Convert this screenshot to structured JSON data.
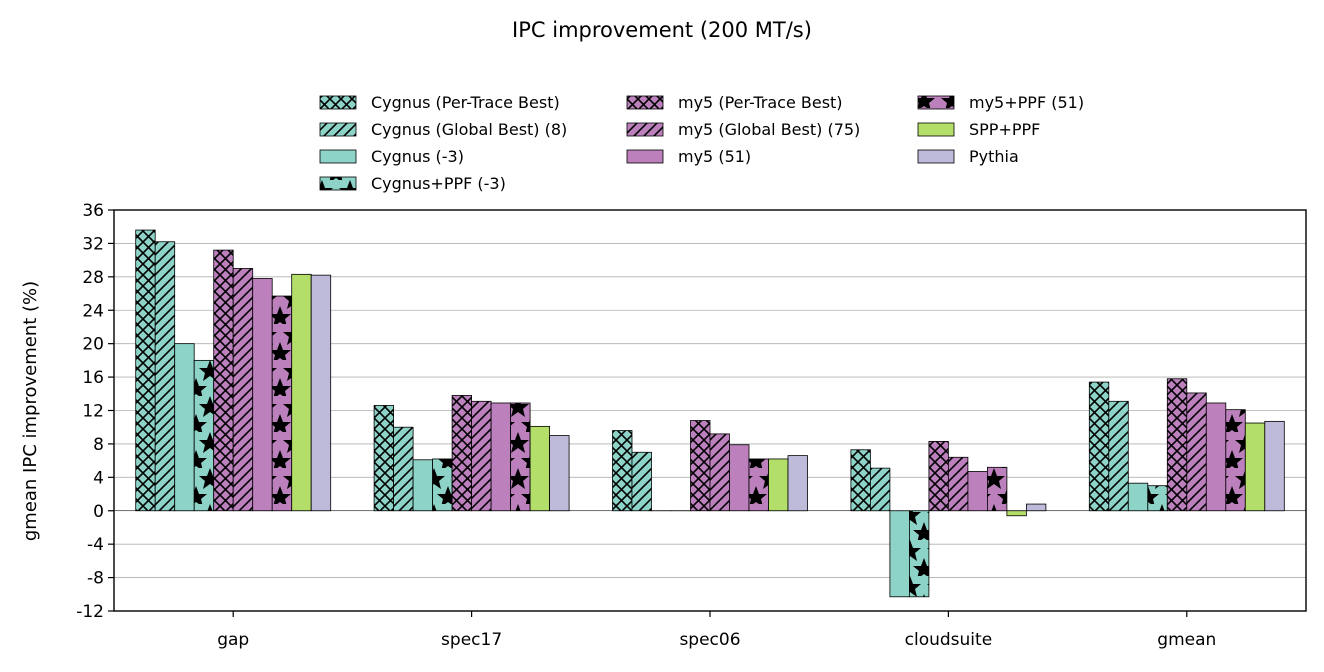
{
  "chart_data": {
    "type": "bar",
    "title": "IPC improvement (200 MT/s)",
    "xlabel": "",
    "ylabel": "gmean IPC improvement (%)",
    "ylim": [
      -12,
      36
    ],
    "yticks": [
      -12,
      -8,
      -4,
      0,
      4,
      8,
      12,
      16,
      20,
      24,
      28,
      32,
      36
    ],
    "grid": "horizontal",
    "legend_position": "top",
    "categories": [
      "gap",
      "spec17",
      "spec06",
      "cloudsuite",
      "gmean"
    ],
    "series": [
      {
        "name": "Cygnus (Per-Trace Best)",
        "color": "#8dd3c7",
        "pattern": "crosshatch",
        "values": [
          33.6,
          12.6,
          9.6,
          7.3,
          15.4
        ]
      },
      {
        "name": "Cygnus (Global Best) (8)",
        "color": "#8dd3c7",
        "pattern": "diagonal",
        "values": [
          32.2,
          10.0,
          7.0,
          5.1,
          13.1
        ]
      },
      {
        "name": "Cygnus (-3)",
        "color": "#8dd3c7",
        "pattern": "none",
        "values": [
          20.0,
          6.1,
          0.0,
          -10.3,
          3.3
        ]
      },
      {
        "name": "Cygnus+PPF (-3)",
        "color": "#8dd3c7",
        "pattern": "star",
        "values": [
          18.0,
          6.2,
          0.0,
          -10.3,
          3.0
        ]
      },
      {
        "name": "my5 (Per-Trace Best)",
        "color": "#bc80bd",
        "pattern": "crosshatch",
        "values": [
          31.2,
          13.8,
          10.8,
          8.3,
          15.8
        ]
      },
      {
        "name": "my5 (Global Best) (75)",
        "color": "#bc80bd",
        "pattern": "diagonal",
        "values": [
          29.0,
          13.1,
          9.2,
          6.4,
          14.1
        ]
      },
      {
        "name": "my5 (51)",
        "color": "#bc80bd",
        "pattern": "none",
        "values": [
          27.8,
          12.9,
          7.9,
          4.7,
          12.9
        ]
      },
      {
        "name": "my5+PPF (51)",
        "color": "#bc80bd",
        "pattern": "star",
        "values": [
          25.7,
          12.9,
          6.2,
          5.2,
          12.1
        ]
      },
      {
        "name": "SPP+PPF",
        "color": "#b3de69",
        "pattern": "none",
        "values": [
          28.3,
          10.1,
          6.2,
          -0.6,
          10.5
        ]
      },
      {
        "name": "Pythia",
        "color": "#bebada",
        "pattern": "none",
        "values": [
          28.2,
          9.0,
          6.6,
          0.8,
          10.7
        ]
      }
    ]
  }
}
